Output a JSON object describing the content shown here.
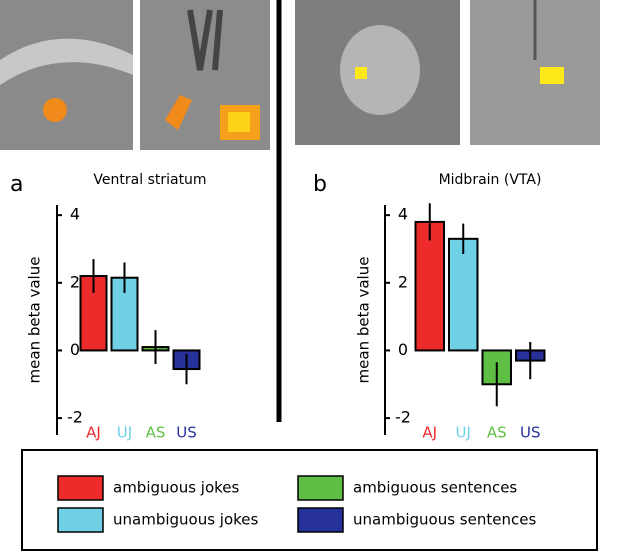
{
  "chart_data": [
    {
      "type": "bar",
      "label": "a",
      "title": "Ventral striatum",
      "y_label": "mean beta value",
      "categories": [
        "AJ",
        "UJ",
        "AS",
        "US"
      ],
      "values": [
        2.2,
        2.15,
        0.1,
        -0.55
      ],
      "errors": [
        0.5,
        0.45,
        0.5,
        0.45
      ],
      "colors": [
        "#ee2b2b",
        "#6fd0e6",
        "#5fbf45",
        "#27319a"
      ],
      "ylim": [
        -2.5,
        4.3
      ],
      "yticks": [
        -2,
        0,
        2,
        4
      ]
    },
    {
      "type": "bar",
      "label": "b",
      "title": "Midbrain (VTA)",
      "y_label": "mean beta value",
      "categories": [
        "AJ",
        "UJ",
        "AS",
        "US"
      ],
      "values": [
        3.8,
        3.3,
        -1.0,
        -0.3
      ],
      "errors": [
        0.55,
        0.45,
        0.65,
        0.55
      ],
      "colors": [
        "#ee2b2b",
        "#6fd0e6",
        "#5fbf45",
        "#27319a"
      ],
      "ylim": [
        -2.5,
        4.3
      ],
      "yticks": [
        -2,
        0,
        2,
        4
      ]
    }
  ],
  "legend": [
    {
      "name": "ambiguous jokes",
      "color": "#ee2b2b"
    },
    {
      "name": "unambiguous jokes",
      "color": "#6fd0e6"
    },
    {
      "name": "ambiguous sentences",
      "color": "#5fbf45"
    },
    {
      "name": "unambiguous sentences",
      "color": "#27319a"
    }
  ]
}
